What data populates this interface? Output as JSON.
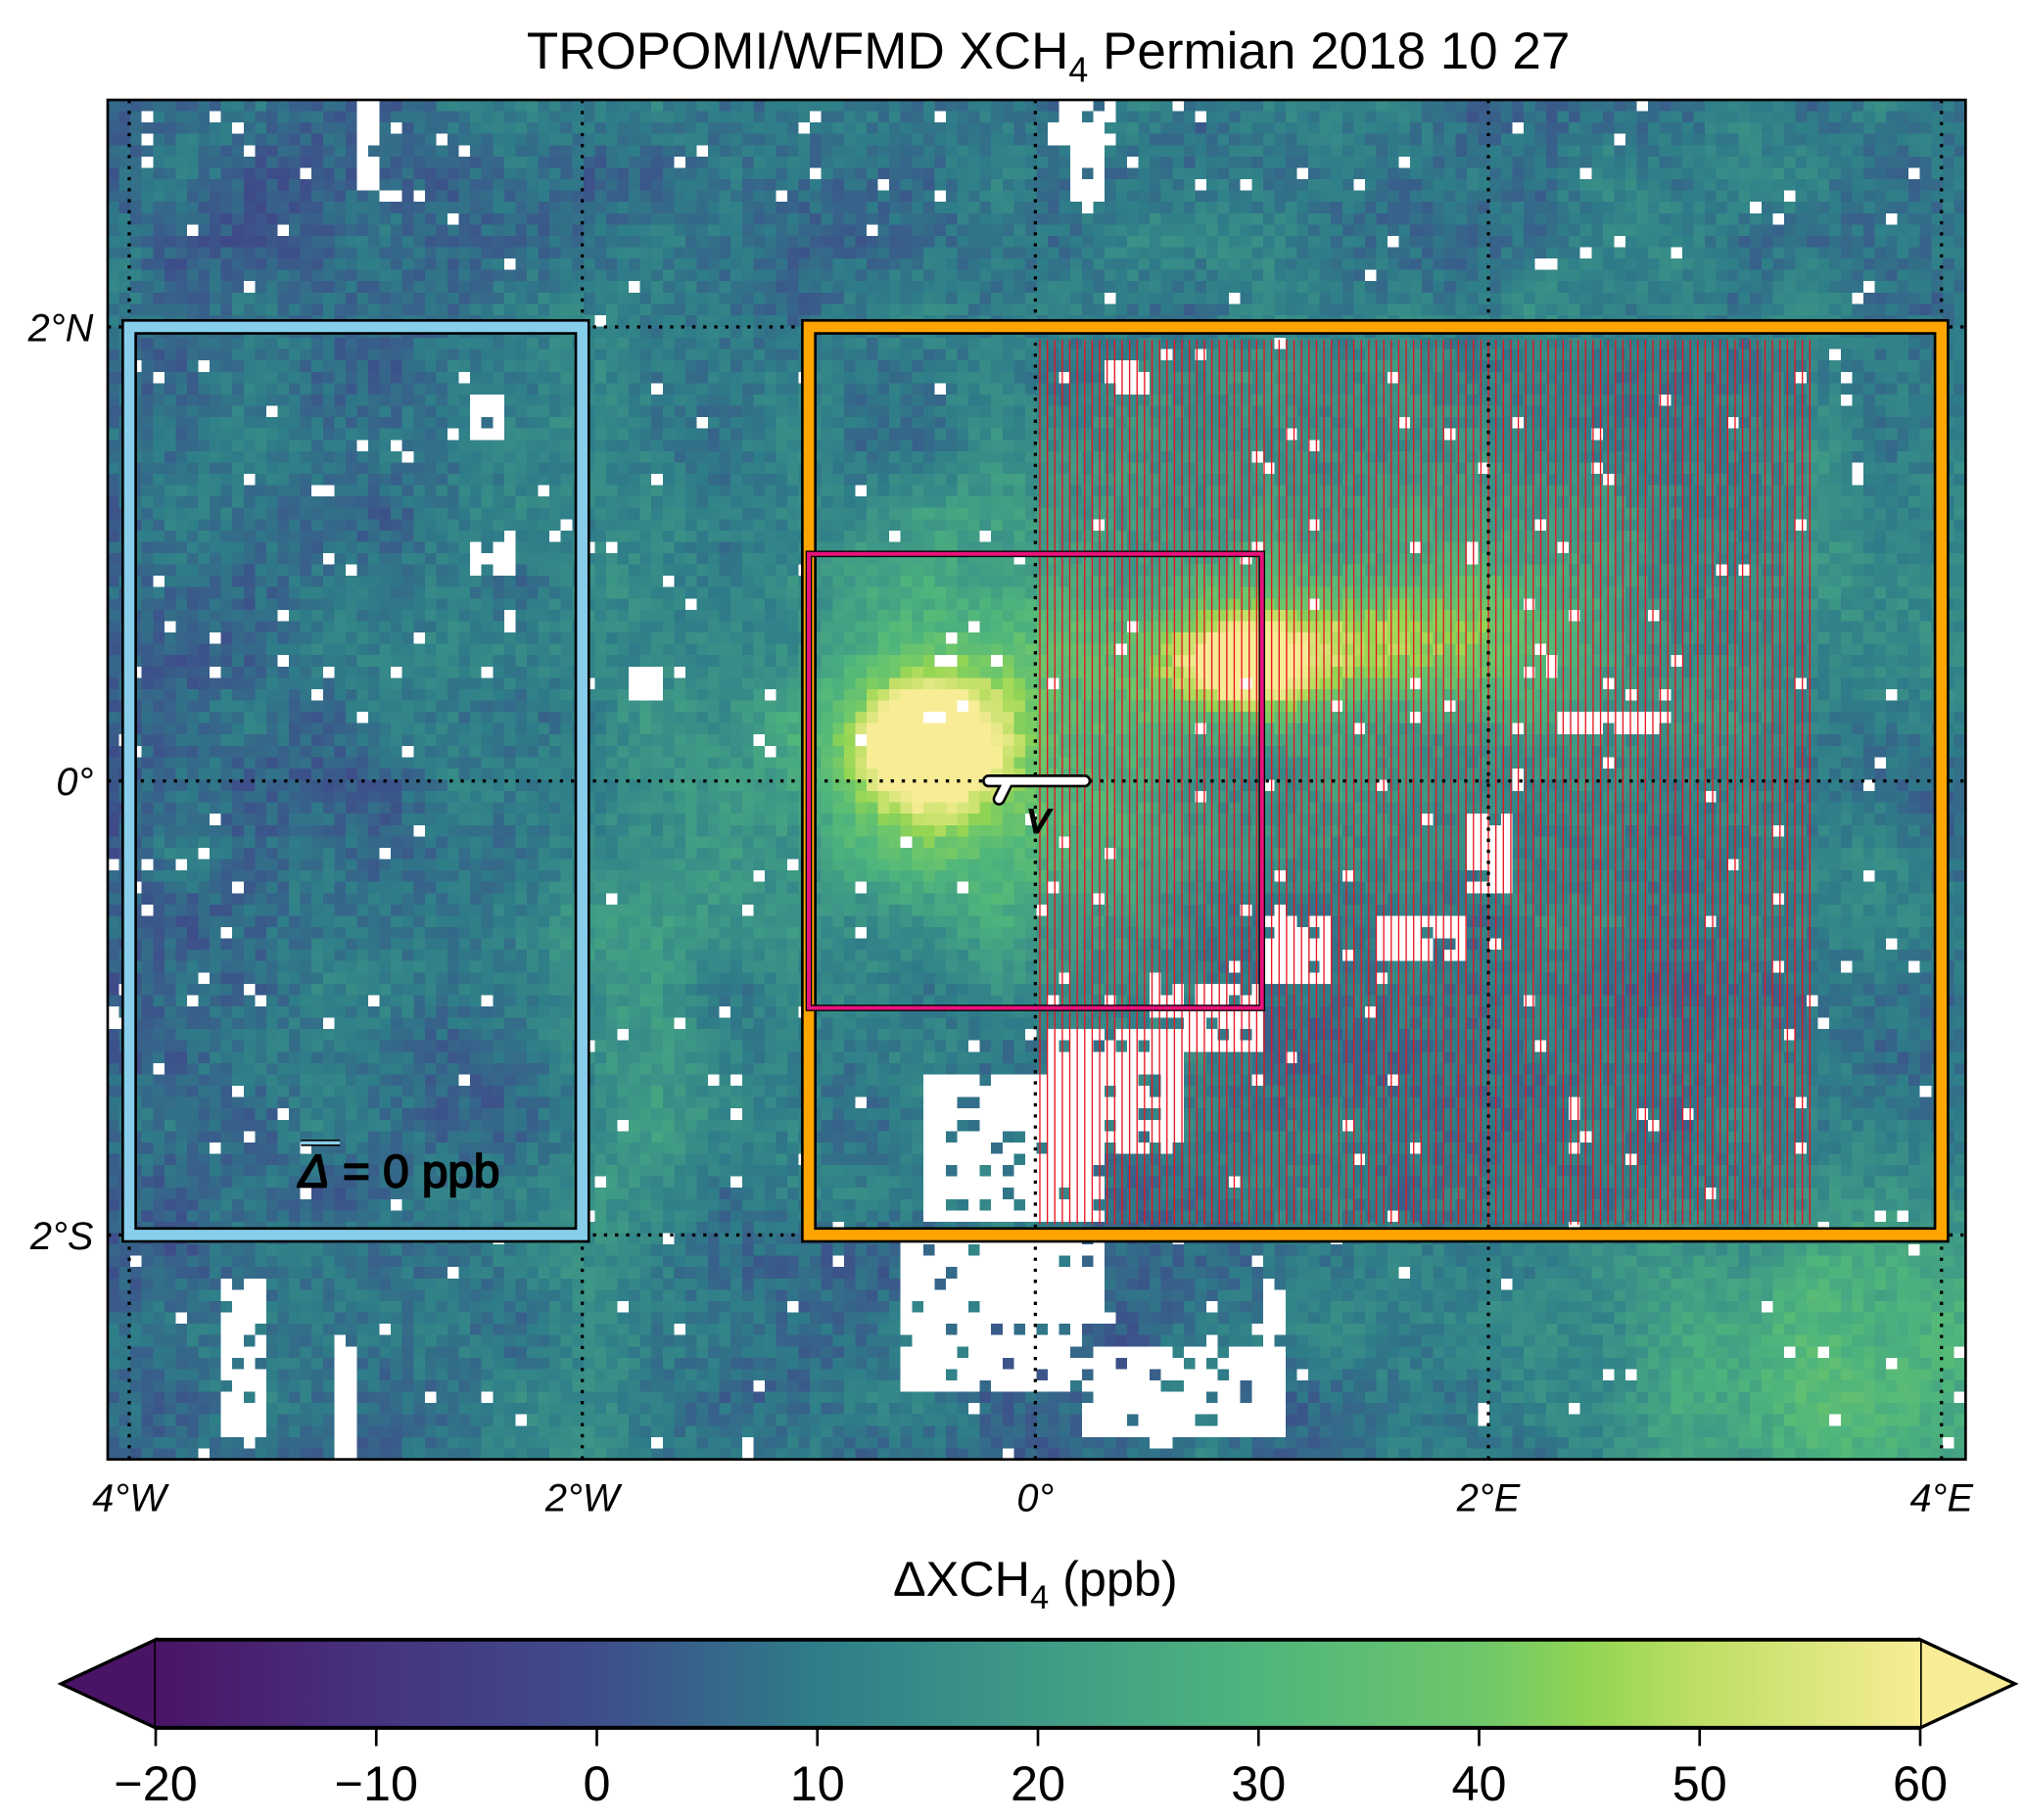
{
  "chart_data": {
    "type": "heatmap",
    "title": {
      "main": "TROPOMI/WFMD XCH",
      "sub": "4",
      "rest": " Permian 2018 10 27"
    },
    "xlim": [
      -4.1,
      4.1
    ],
    "ylim": [
      -3,
      3
    ],
    "x_ticks": [
      {
        "value": -4,
        "label": "4°W"
      },
      {
        "value": -2,
        "label": "2°W"
      },
      {
        "value": 0,
        "label": "0°"
      },
      {
        "value": 2,
        "label": "2°E"
      },
      {
        "value": 4,
        "label": "4°E"
      }
    ],
    "y_ticks": [
      {
        "value": 2,
        "label": "2°N"
      },
      {
        "value": 0,
        "label": "0°"
      },
      {
        "value": -2,
        "label": "2°S"
      }
    ],
    "grid": "dotted",
    "colorbar": {
      "label_main": "ΔXCH",
      "label_sub": "4",
      "label_rest": " (ppb)",
      "range": [
        -20,
        60
      ],
      "extend": "both",
      "ticks": [
        "−20",
        "−10",
        "0",
        "10",
        "20",
        "30",
        "40",
        "50",
        "60"
      ],
      "tick_values": [
        -20,
        -10,
        0,
        10,
        20,
        30,
        40,
        50,
        60
      ],
      "colors": [
        [
          -20,
          "#4a1466"
        ],
        [
          -10,
          "#46337e"
        ],
        [
          0,
          "#3e4d8a"
        ],
        [
          10,
          "#2e7d89"
        ],
        [
          20,
          "#3f9a86"
        ],
        [
          30,
          "#4fb57c"
        ],
        [
          40,
          "#6ec76a"
        ],
        [
          45,
          "#93d553"
        ],
        [
          50,
          "#bedf64"
        ],
        [
          60,
          "#f8ed96"
        ]
      ]
    },
    "cell_size_deg": 0.05,
    "enhancement_features": [
      {
        "lon": -0.5,
        "lat": 0.15,
        "amp": 55,
        "sx": 0.22,
        "sy": 0.2
      },
      {
        "lon": -0.35,
        "lat": 0.05,
        "amp": 28,
        "sx": 0.6,
        "sy": 0.55
      },
      {
        "lon": 0.9,
        "lat": 0.5,
        "amp": 42,
        "sx": 0.22,
        "sy": 0.14
      },
      {
        "lon": 1.55,
        "lat": 0.6,
        "amp": 28,
        "sx": 0.6,
        "sy": 0.2
      },
      {
        "lon": 1.4,
        "lat": 0.8,
        "amp": 14,
        "sx": 1.4,
        "sy": 0.8
      },
      {
        "lon": 3.6,
        "lat": -2.6,
        "amp": 22,
        "sx": 0.8,
        "sy": 0.5
      },
      {
        "lon": -1.8,
        "lat": -1.0,
        "amp": 10,
        "sx": 0.3,
        "sy": 1.6
      }
    ],
    "boxes": [
      {
        "name": "background-box",
        "color": "#87ceeb",
        "lon": [
          -4,
          -2
        ],
        "lat": [
          -2,
          2
        ]
      },
      {
        "name": "target-box",
        "color": "#ffa500",
        "lon": [
          -1,
          4
        ],
        "lat": [
          -2,
          2
        ]
      },
      {
        "name": "source-box",
        "color": "#e8137d",
        "lon": [
          -1,
          1
        ],
        "lat": [
          -1,
          1
        ]
      }
    ],
    "hatch_region": {
      "color": "#e8141e",
      "lon": [
        0,
        3.45
      ],
      "lat": [
        -2,
        2
      ]
    },
    "annotation": {
      "symbol": "Δ",
      "text": " = 0 ppb",
      "color": "#87ceeb"
    },
    "wind_label": "V"
  }
}
